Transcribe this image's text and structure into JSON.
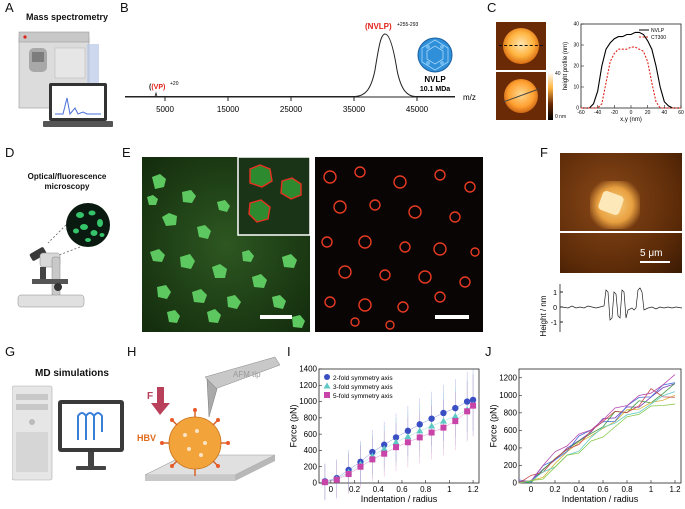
{
  "panels": {
    "A": {
      "letter": "A",
      "title": "Mass spectrometry"
    },
    "B": {
      "letter": "B"
    },
    "C": {
      "letter": "C"
    },
    "D": {
      "letter": "D",
      "title": "Optical/fluorescence microscopy"
    },
    "E": {
      "letter": "E"
    },
    "F": {
      "letter": "F",
      "scale_label": "5 μm",
      "ylabel": "Height / nm",
      "ticks": [
        "1",
        "0",
        "-1"
      ]
    },
    "G": {
      "letter": "G",
      "title": "MD simulations"
    },
    "H": {
      "letter": "H",
      "afm_label": "AFM tip",
      "force_label": "F",
      "hbv_label": "HBV"
    },
    "I": {
      "letter": "I"
    },
    "J": {
      "letter": "J"
    }
  },
  "spectrum": {
    "xlabel": "m/z",
    "xticks": [
      "5000",
      "15000",
      "25000",
      "35000",
      "45000"
    ],
    "vp_label": "(VP)",
    "vp_sup": "+20",
    "nvlp_label": "(NVLP)",
    "nvlp_sup": "+255-293",
    "nvlp_name": "NVLP",
    "nvlp_mass": "10.1 MDa"
  },
  "colors": {
    "accent_red": "#e2231a",
    "nvlp_blue": "#4a9fd8",
    "green": "#22aa33",
    "fluor_red": "#e03020"
  },
  "chart_data": [
    {
      "type": "line",
      "panel": "C",
      "xlabel": "x,y (nm)",
      "ylabel": "height profile (nm)",
      "xlim": [
        -60,
        60
      ],
      "ylim": [
        0,
        40
      ],
      "xticks": [
        "-60",
        "-40",
        "-20",
        "0",
        "20",
        "40",
        "60"
      ],
      "yticks": [
        "0",
        "10",
        "20",
        "30",
        "40"
      ],
      "colorbar_ticks": [
        "40",
        "0 nm"
      ],
      "legend": "top-right",
      "series": [
        {
          "name": "NVLP",
          "color": "#000000",
          "x": [
            -60,
            -50,
            -45,
            -40,
            -35,
            -30,
            -25,
            -20,
            -15,
            -10,
            -5,
            0,
            5,
            10,
            15,
            20,
            25,
            30,
            35,
            40,
            45,
            50,
            60
          ],
          "y": [
            0,
            0,
            2,
            8,
            20,
            28,
            31,
            33,
            34,
            34,
            35,
            35,
            36,
            36,
            35,
            32,
            28,
            20,
            10,
            3,
            1,
            0,
            0
          ]
        },
        {
          "name": "CT300",
          "color": "#e2231a",
          "x": [
            -60,
            -40,
            -35,
            -30,
            -25,
            -20,
            -15,
            -10,
            -5,
            0,
            5,
            10,
            15,
            20,
            25,
            30,
            35,
            60
          ],
          "y": [
            0,
            0,
            2,
            12,
            22,
            26,
            28,
            28,
            28,
            29,
            29,
            28,
            27,
            22,
            12,
            3,
            0,
            0
          ]
        }
      ]
    },
    {
      "type": "scatter",
      "panel": "I",
      "xlabel": "Indentation / radius",
      "ylabel": "Force (pN)",
      "xlim": [
        -0.1,
        1.25
      ],
      "ylim": [
        0,
        1400
      ],
      "xticks": [
        "0",
        "0.2",
        "0.4",
        "0.6",
        "0.8",
        "1",
        "1.2"
      ],
      "yticks": [
        "0",
        "200",
        "400",
        "600",
        "800",
        "1000",
        "1200",
        "1400"
      ],
      "legend": "top-left",
      "series": [
        {
          "name": "2-fold symmetry axis",
          "color": "#3b4fc4",
          "x": [
            -0.05,
            0.05,
            0.15,
            0.25,
            0.35,
            0.45,
            0.55,
            0.65,
            0.75,
            0.85,
            0.95,
            1.05,
            1.15,
            1.2
          ],
          "y": [
            20,
            60,
            160,
            260,
            380,
            470,
            560,
            640,
            720,
            790,
            860,
            920,
            1000,
            1020
          ]
        },
        {
          "name": "3-fold symmetry axis",
          "color": "#5fc9c5",
          "x": [
            -0.05,
            0.05,
            0.15,
            0.25,
            0.35,
            0.45,
            0.55,
            0.65,
            0.75,
            0.85,
            0.95,
            1.05,
            1.15,
            1.2
          ],
          "y": [
            10,
            50,
            130,
            230,
            330,
            420,
            500,
            570,
            640,
            700,
            760,
            820,
            900,
            960
          ]
        },
        {
          "name": "5-fold symmetry axis",
          "color": "#c944a8",
          "x": [
            -0.05,
            0.05,
            0.15,
            0.25,
            0.35,
            0.45,
            0.55,
            0.65,
            0.75,
            0.85,
            0.95,
            1.05,
            1.15,
            1.2
          ],
          "y": [
            10,
            40,
            110,
            200,
            290,
            360,
            440,
            500,
            560,
            620,
            680,
            760,
            880,
            950
          ]
        }
      ]
    },
    {
      "type": "line",
      "panel": "J",
      "xlabel": "Indentation / radius",
      "ylabel": "Force (pN)",
      "xlim": [
        -0.1,
        1.25
      ],
      "ylim": [
        0,
        1300
      ],
      "xticks": [
        "0",
        "0.2",
        "0.4",
        "0.6",
        "0.8",
        "1",
        "1.2"
      ],
      "yticks": [
        "0",
        "200",
        "400",
        "600",
        "800",
        "1000",
        "1200"
      ],
      "series": [
        {
          "color": "#7a3fb8",
          "x": [
            -0.1,
            0,
            0.1,
            0.2,
            0.3,
            0.4,
            0.5,
            0.6,
            0.7,
            0.8,
            0.9,
            1.0,
            1.1,
            1.2
          ],
          "y": [
            0,
            20,
            120,
            280,
            380,
            520,
            580,
            700,
            760,
            850,
            900,
            980,
            1050,
            1150
          ]
        },
        {
          "color": "#3a9a3a",
          "x": [
            -0.1,
            0,
            0.1,
            0.2,
            0.3,
            0.4,
            0.5,
            0.6,
            0.7,
            0.8,
            0.9,
            1.0,
            1.1,
            1.2
          ],
          "y": [
            0,
            40,
            150,
            240,
            400,
            460,
            600,
            640,
            780,
            820,
            920,
            950,
            1020,
            1100
          ]
        },
        {
          "color": "#d6b43a",
          "x": [
            -0.1,
            0,
            0.1,
            0.2,
            0.3,
            0.4,
            0.5,
            0.6,
            0.7,
            0.8,
            0.9,
            1.0,
            1.1,
            1.2
          ],
          "y": [
            0,
            10,
            100,
            220,
            320,
            480,
            520,
            660,
            700,
            800,
            860,
            900,
            980,
            1000
          ]
        },
        {
          "color": "#4a6fd8",
          "x": [
            -0.1,
            0,
            0.1,
            0.2,
            0.3,
            0.4,
            0.5,
            0.6,
            0.7,
            0.8,
            0.9,
            1.0,
            1.1,
            1.2
          ],
          "y": [
            0,
            30,
            180,
            300,
            360,
            500,
            620,
            680,
            740,
            880,
            940,
            1000,
            1100,
            1180
          ]
        },
        {
          "color": "#c94a4a",
          "x": [
            -0.1,
            0,
            0.1,
            0.2,
            0.3,
            0.4,
            0.5,
            0.6,
            0.7,
            0.8,
            0.9,
            1.0,
            1.1,
            1.2
          ],
          "y": [
            0,
            50,
            140,
            260,
            420,
            440,
            560,
            720,
            800,
            840,
            880,
            1040,
            1000,
            960
          ]
        },
        {
          "color": "#5fc9c5",
          "x": [
            -0.1,
            0,
            0.1,
            0.2,
            0.3,
            0.4,
            0.5,
            0.6,
            0.7,
            0.8,
            0.9,
            1.0,
            1.1,
            1.2
          ],
          "y": [
            0,
            20,
            90,
            200,
            300,
            400,
            520,
            600,
            700,
            760,
            840,
            900,
            960,
            1060
          ]
        },
        {
          "color": "#b44ab0",
          "x": [
            -0.1,
            0,
            0.1,
            0.2,
            0.3,
            0.4,
            0.5,
            0.6,
            0.7,
            0.8,
            0.9,
            1.0,
            1.1,
            1.2
          ],
          "y": [
            0,
            60,
            200,
            320,
            440,
            540,
            640,
            720,
            820,
            900,
            980,
            1060,
            1120,
            1200
          ]
        },
        {
          "color": "#8ac94a",
          "x": [
            -0.1,
            0,
            0.1,
            0.2,
            0.3,
            0.4,
            0.5,
            0.6,
            0.7,
            0.8,
            0.9,
            1.0,
            1.1,
            1.2
          ],
          "y": [
            0,
            10,
            80,
            180,
            280,
            360,
            460,
            560,
            640,
            720,
            800,
            860,
            920,
            900
          ]
        }
      ]
    }
  ]
}
